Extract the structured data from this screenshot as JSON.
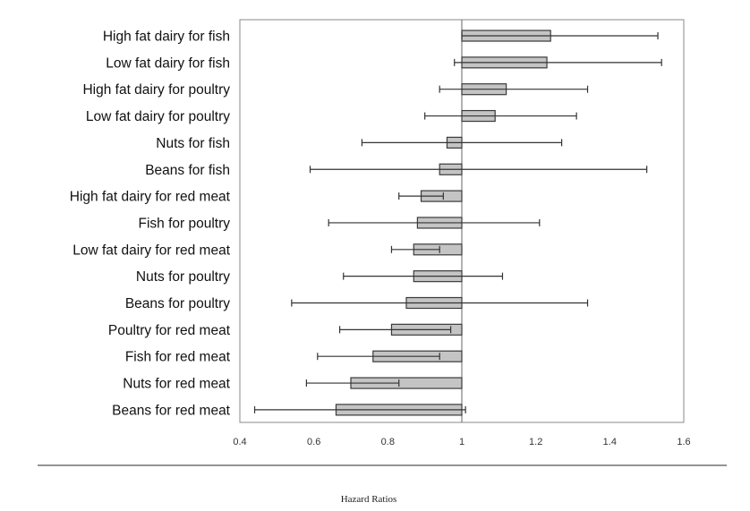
{
  "chart_data": {
    "type": "bar",
    "orientation": "horizontal",
    "baseline": 1,
    "categories": [
      "High fat dairy for fish",
      "Low fat dairy for fish",
      "High fat dairy for poultry",
      "Low fat dairy for poultry",
      "Nuts for fish",
      "Beans for fish",
      "High fat dairy for red meat",
      "Fish for poultry",
      "Low fat dairy for red meat",
      "Nuts for poultry",
      "Beans for poultry",
      "Poultry for red meat",
      "Fish for red meat",
      "Nuts for red meat",
      "Beans for red meat"
    ],
    "series": [
      {
        "values": [
          1.24,
          1.23,
          1.12,
          1.09,
          0.96,
          0.94,
          0.89,
          0.88,
          0.87,
          0.87,
          0.85,
          0.81,
          0.76,
          0.7,
          0.66
        ],
        "ci_lower": [
          1.0,
          0.98,
          0.94,
          0.9,
          0.73,
          0.59,
          0.83,
          0.64,
          0.81,
          0.68,
          0.54,
          0.67,
          0.61,
          0.58,
          0.44
        ],
        "ci_upper": [
          1.53,
          1.54,
          1.34,
          1.31,
          1.27,
          1.5,
          0.95,
          1.21,
          0.94,
          1.11,
          1.34,
          0.97,
          0.94,
          0.83,
          1.01
        ]
      }
    ],
    "xlim": [
      0.4,
      1.6
    ],
    "xticks": [
      "0.4",
      "0.6",
      "0.8",
      "1",
      "1.2",
      "1.4",
      "1.6"
    ],
    "xlabel": "Hazard Ratios",
    "ylabel": "",
    "grid": false,
    "legend": "none",
    "colors": {
      "bar_fill": "#c4c4c4",
      "bar_stroke": "#3a3a3a",
      "axis": "#666666",
      "whisker": "#333333"
    }
  }
}
